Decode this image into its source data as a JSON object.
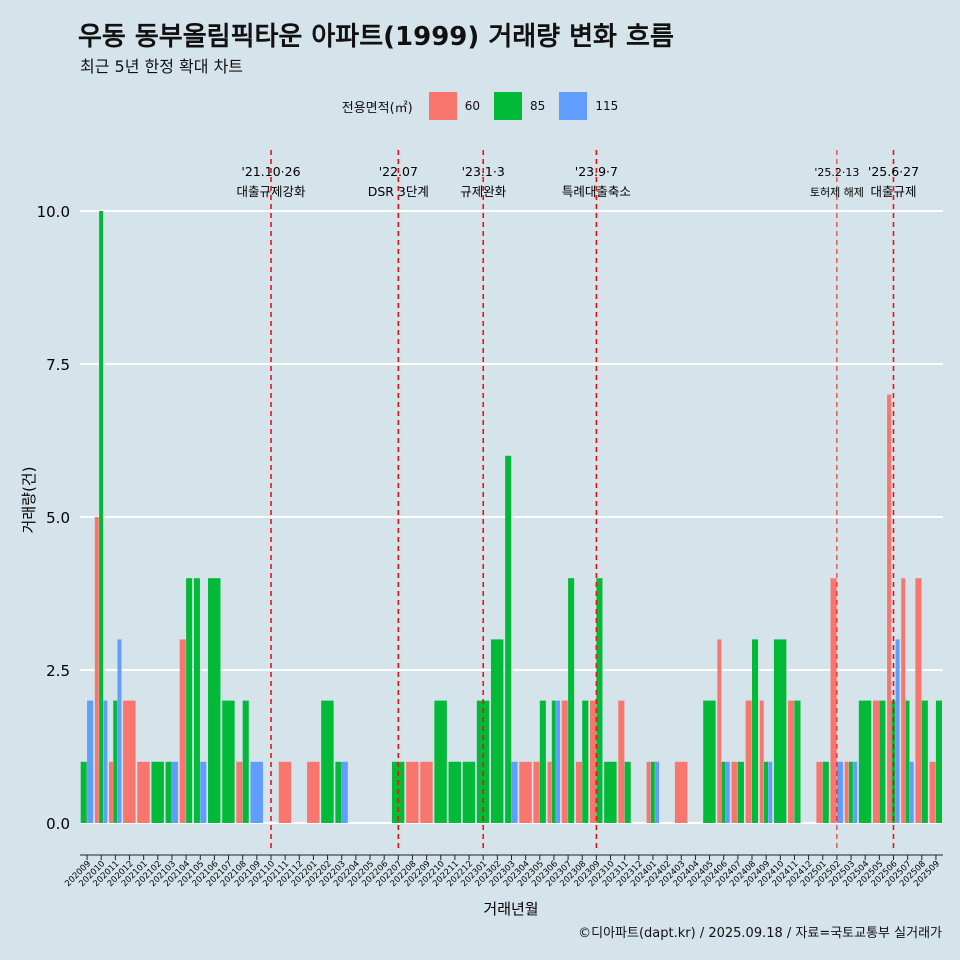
{
  "title": "우동 동부올림픽타운 아파트(1999) 거래량 변화 흐름",
  "subtitle": "최근 5년 한정 확대 차트",
  "caption": "©디아파트(dapt.kr) / 2025.09.18 / 자료=국토교통부 실거래가",
  "legend": {
    "title": "전용면적(㎡)",
    "items": [
      {
        "label": "60",
        "color": "#f8766d"
      },
      {
        "label": "85",
        "color": "#00ba38"
      },
      {
        "label": "115",
        "color": "#619cff"
      }
    ]
  },
  "chart_data": {
    "type": "bar",
    "xlabel": "거래년월",
    "ylabel": "거래량(건)",
    "ylim": [
      -0.4,
      10.6
    ],
    "yticks": [
      "0.0",
      "2.5",
      "5.0",
      "7.5",
      "10.0"
    ],
    "yticks_values": [
      0,
      2.5,
      5,
      7.5,
      10
    ],
    "categories": [
      "202009",
      "202010",
      "202011",
      "202012",
      "202101",
      "202102",
      "202103",
      "202104",
      "202105",
      "202106",
      "202107",
      "202108",
      "202109",
      "202110",
      "202111",
      "202112",
      "202201",
      "202202",
      "202203",
      "202204",
      "202205",
      "202206",
      "202207",
      "202208",
      "202209",
      "202210",
      "202211",
      "202212",
      "202301",
      "202302",
      "202303",
      "202304",
      "202305",
      "202306",
      "202307",
      "202308",
      "202309",
      "202310",
      "202311",
      "202312",
      "202401",
      "202402",
      "202403",
      "202404",
      "202405",
      "202406",
      "202407",
      "202408",
      "202409",
      "202410",
      "202411",
      "202412",
      "202501",
      "202502",
      "202503",
      "202504",
      "202505",
      "202506",
      "202507",
      "202508",
      "202509"
    ],
    "series": [
      {
        "name": "60",
        "color": "#f8766d",
        "values": [
          0,
          5,
          1,
          2,
          1,
          0,
          0,
          3,
          0,
          0,
          0,
          1,
          0,
          0,
          1,
          0,
          1,
          0,
          0,
          0,
          0,
          0,
          0,
          1,
          1,
          0,
          0,
          0,
          0,
          0,
          0,
          1,
          1,
          1,
          2,
          1,
          2,
          0,
          2,
          0,
          1,
          0,
          1,
          0,
          0,
          3,
          1,
          2,
          2,
          0,
          2,
          0,
          1,
          4,
          1,
          0,
          2,
          7,
          4,
          4,
          1
        ]
      },
      {
        "name": "85",
        "color": "#00ba38",
        "values": [
          1,
          10,
          2,
          0,
          0,
          1,
          1,
          4,
          4,
          4,
          2,
          2,
          0,
          0,
          0,
          0,
          0,
          2,
          1,
          0,
          0,
          0,
          1,
          0,
          0,
          2,
          1,
          1,
          2,
          3,
          6,
          0,
          2,
          2,
          4,
          2,
          4,
          1,
          1,
          0,
          1,
          0,
          0,
          0,
          2,
          1,
          1,
          3,
          1,
          3,
          2,
          0,
          1,
          0,
          1,
          2,
          2,
          2,
          2,
          2,
          2
        ]
      },
      {
        "name": "115",
        "color": "#619cff",
        "values": [
          2,
          2,
          3,
          0,
          0,
          0,
          1,
          0,
          1,
          0,
          0,
          0,
          1,
          0,
          0,
          0,
          0,
          0,
          1,
          0,
          0,
          0,
          0,
          0,
          0,
          0,
          0,
          0,
          0,
          0,
          1,
          0,
          0,
          2,
          0,
          0,
          0,
          0,
          0,
          0,
          1,
          0,
          0,
          0,
          0,
          1,
          0,
          0,
          1,
          0,
          0,
          0,
          0,
          1,
          1,
          0,
          0,
          3,
          1,
          0,
          0
        ]
      }
    ],
    "events": [
      {
        "month": "202110",
        "date": "'21.10·26",
        "label": "대출규제강화"
      },
      {
        "month": "202207",
        "date": "'22.07",
        "label": "DSR 3단계"
      },
      {
        "month": "202301",
        "date": "'23.1·3",
        "label": "규제완화"
      },
      {
        "month": "202309",
        "date": "'23.9·7",
        "label": "특례대출축소"
      },
      {
        "month": "202502",
        "date": "'25.2·13",
        "label": "토허제 해제"
      },
      {
        "month": "202506",
        "date": "'25.6·27",
        "label": "대출규제"
      }
    ]
  }
}
